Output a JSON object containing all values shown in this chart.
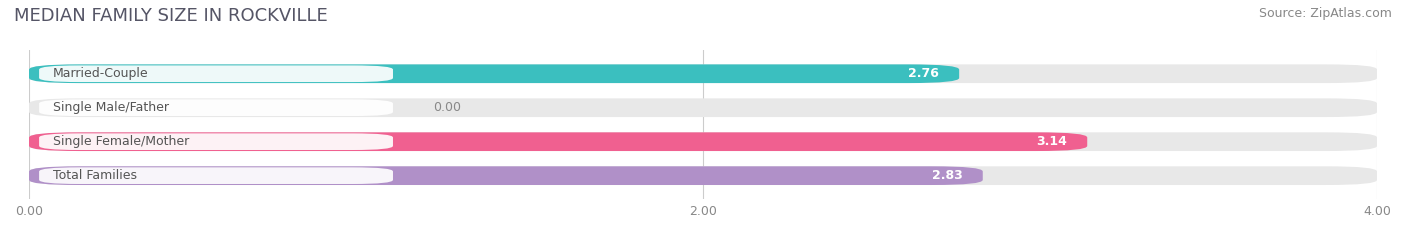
{
  "title": "MEDIAN FAMILY SIZE IN ROCKVILLE",
  "source": "Source: ZipAtlas.com",
  "categories": [
    "Married-Couple",
    "Single Male/Father",
    "Single Female/Mother",
    "Total Families"
  ],
  "values": [
    2.76,
    0.0,
    3.14,
    2.83
  ],
  "bar_colors": [
    "#3bbfbf",
    "#aab4e0",
    "#f06090",
    "#b090c8"
  ],
  "xlim": [
    0,
    4.0
  ],
  "xticks": [
    0.0,
    2.0,
    4.0
  ],
  "xticklabels": [
    "0.00",
    "2.00",
    "4.00"
  ],
  "background_color": "#ffffff",
  "bar_background_color": "#e8e8e8",
  "title_fontsize": 13,
  "source_fontsize": 9,
  "label_fontsize": 9,
  "value_fontsize": 9,
  "bar_height": 0.55,
  "figsize": [
    14.06,
    2.33
  ],
  "dpi": 100
}
